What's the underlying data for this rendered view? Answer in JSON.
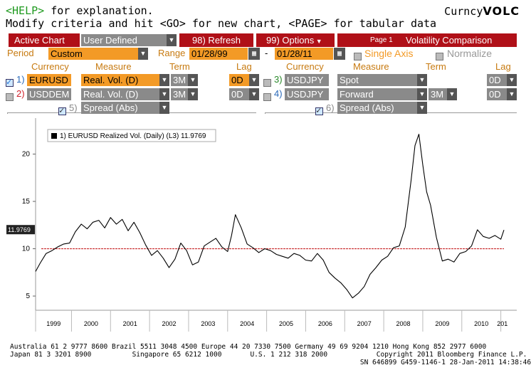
{
  "header": {
    "help_key": "<HELP>",
    "help_text": " for explanation.",
    "modify_text": "Modify criteria and hit <GO> for new chart, <PAGE> for tabular data",
    "brand_prefix": "Curncy",
    "brand_code": "VOLC"
  },
  "toolbar": {
    "active_chart_label": "Active Chart",
    "chart_mode_value": "User Defined",
    "refresh_label": "98) Refresh",
    "options_label": "99) Options",
    "page_label": "Page 1",
    "title": "Volatility Comparison"
  },
  "period_row": {
    "period_label": "Period",
    "period_value": "Custom",
    "range_label": "Range",
    "range_start": "01/28/99",
    "range_sep": "-",
    "range_end": "01/28/11",
    "single_axis_label": "Single Axis",
    "normalize_label": "Normalize"
  },
  "columns": {
    "left": {
      "currency": "Currency",
      "measure": "Measure",
      "term": "Term",
      "lag": "Lag"
    },
    "right": {
      "currency": "Currency",
      "measure": "Measure",
      "term": "Term",
      "lag": "Lag"
    }
  },
  "rows": {
    "r1": {
      "num": "1)",
      "currency": "EURUSD",
      "measure": "Real. Vol. (D)",
      "term": "3M",
      "lag": "0D"
    },
    "r2": {
      "num": "2)",
      "currency": "USDDEM",
      "measure": "Real. Vol. (D)",
      "term": "3M",
      "lag": "0D"
    },
    "r3": {
      "num": "3)",
      "currency": "USDJPY",
      "measure": "Spot",
      "term": "",
      "lag": "0D"
    },
    "r4": {
      "num": "4)",
      "currency": "USDJPY",
      "measure": "Forward",
      "term": "3M",
      "lag": "0D"
    },
    "r5": {
      "num": "5)",
      "measure": "Spread (Abs)"
    },
    "r6": {
      "num": "6)",
      "measure": "Spread (Abs)"
    }
  },
  "chart_data": {
    "type": "line",
    "legend": "1) EURUSD Realized Vol. (Daily) (L3) 11.9769",
    "last_value_label": "11.9769",
    "y_ticks": [
      "5",
      "10",
      "15",
      "20"
    ],
    "ylim": [
      3.5,
      23.8
    ],
    "x_ticks": [
      "1999",
      "2000",
      "2001",
      "2002",
      "2003",
      "2004",
      "2005",
      "2006",
      "2007",
      "2008",
      "2009",
      "2010",
      "201"
    ],
    "xlim": [
      1999.08,
      2011.08
    ],
    "reference_line": 10,
    "colors": {
      "series": "#000000",
      "reference": "#c8282a"
    },
    "series": [
      {
        "x": [
          1999.08,
          1999.2,
          1999.35,
          1999.5,
          1999.65,
          1999.8,
          1999.95,
          2000.1,
          2000.25,
          2000.4,
          2000.55,
          2000.7,
          2000.85,
          2001.0,
          2001.15,
          2001.3,
          2001.45,
          2001.6,
          2001.75,
          2001.9,
          2002.05,
          2002.2,
          2002.35,
          2002.5,
          2002.65,
          2002.8,
          2002.95,
          2003.1,
          2003.25,
          2003.4,
          2003.55,
          2003.7,
          2003.85,
          2004.0,
          2004.1,
          2004.2,
          2004.35,
          2004.5,
          2004.65,
          2004.8,
          2004.95,
          2005.1,
          2005.25,
          2005.4,
          2005.55,
          2005.7,
          2005.85,
          2006.0,
          2006.15,
          2006.3,
          2006.45,
          2006.6,
          2006.75,
          2006.9,
          2007.05,
          2007.2,
          2007.35,
          2007.5,
          2007.65,
          2007.8,
          2007.95,
          2008.1,
          2008.25,
          2008.4,
          2008.55,
          2008.7,
          2008.8,
          2008.9,
          2009.0,
          2009.1,
          2009.2,
          2009.35,
          2009.5,
          2009.65,
          2009.8,
          2009.95,
          2010.1,
          2010.25,
          2010.4,
          2010.55,
          2010.7,
          2010.85,
          2011.0,
          2011.08
        ],
        "y": [
          7.6,
          8.5,
          9.5,
          9.8,
          10.2,
          10.5,
          10.6,
          11.8,
          12.6,
          12.1,
          12.8,
          13.0,
          12.2,
          13.3,
          12.6,
          13.1,
          11.9,
          12.8,
          11.7,
          10.4,
          9.3,
          9.8,
          9.0,
          8.0,
          8.9,
          10.6,
          9.8,
          8.3,
          8.6,
          10.3,
          10.7,
          11.1,
          10.2,
          9.7,
          11.4,
          13.6,
          12.2,
          10.5,
          10.1,
          9.6,
          10.0,
          9.8,
          9.4,
          9.2,
          9.0,
          9.5,
          9.3,
          8.8,
          8.7,
          9.5,
          8.8,
          7.5,
          6.9,
          6.4,
          5.7,
          4.8,
          5.3,
          6.0,
          7.3,
          8.0,
          8.8,
          9.2,
          10.1,
          10.3,
          12.3,
          17.2,
          20.9,
          22.1,
          18.9,
          16.0,
          14.6,
          11.2,
          8.7,
          8.9,
          8.6,
          9.5,
          9.7,
          10.3,
          12.0,
          11.3,
          11.1,
          11.4,
          11.0,
          11.98
        ]
      }
    ]
  },
  "footer": {
    "line1": "Australia 61 2 9777 8600 Brazil 5511 3048 4500 Europe 44 20 7330 7500 Germany 49 69 9204 1210 Hong Kong 852 2977 6000",
    "line2": "Japan 81 3 3201 8900          Singapore 65 6212 1000       U.S. 1 212 318 2000            Copyright 2011 Bloomberg Finance L.P.",
    "line3": "                                                                                      SN 646899 G459-1146-1 28-Jan-2011 14:38:46"
  }
}
